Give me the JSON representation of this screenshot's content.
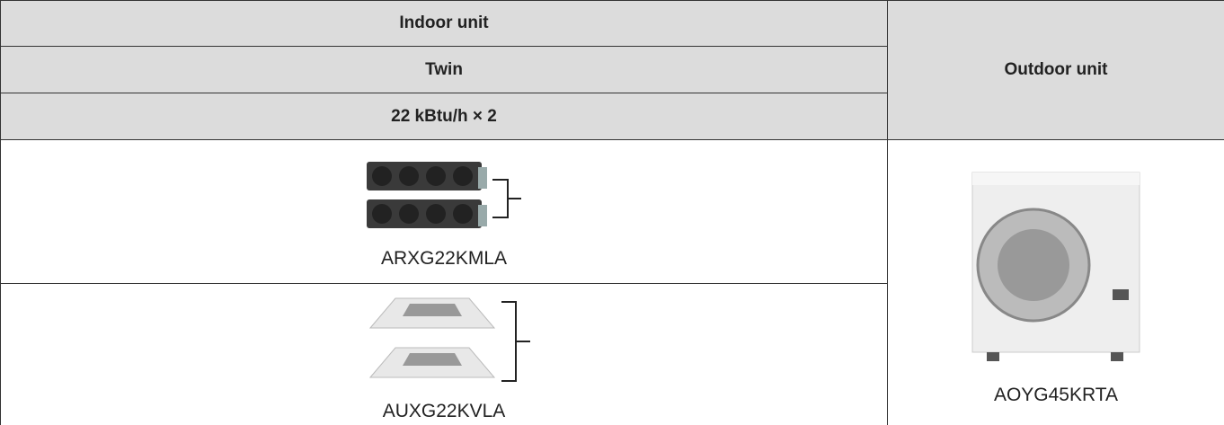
{
  "table": {
    "header": {
      "indoor_unit": "Indoor unit",
      "type": "Twin",
      "capacity": "22 kBtu/h × 2",
      "outdoor_unit": "Outdoor unit"
    },
    "rows": [
      {
        "model": "ARXG22KMLA"
      },
      {
        "model": "AUXG22KVLA"
      }
    ],
    "outdoor_model": "AOYG45KRTA"
  }
}
